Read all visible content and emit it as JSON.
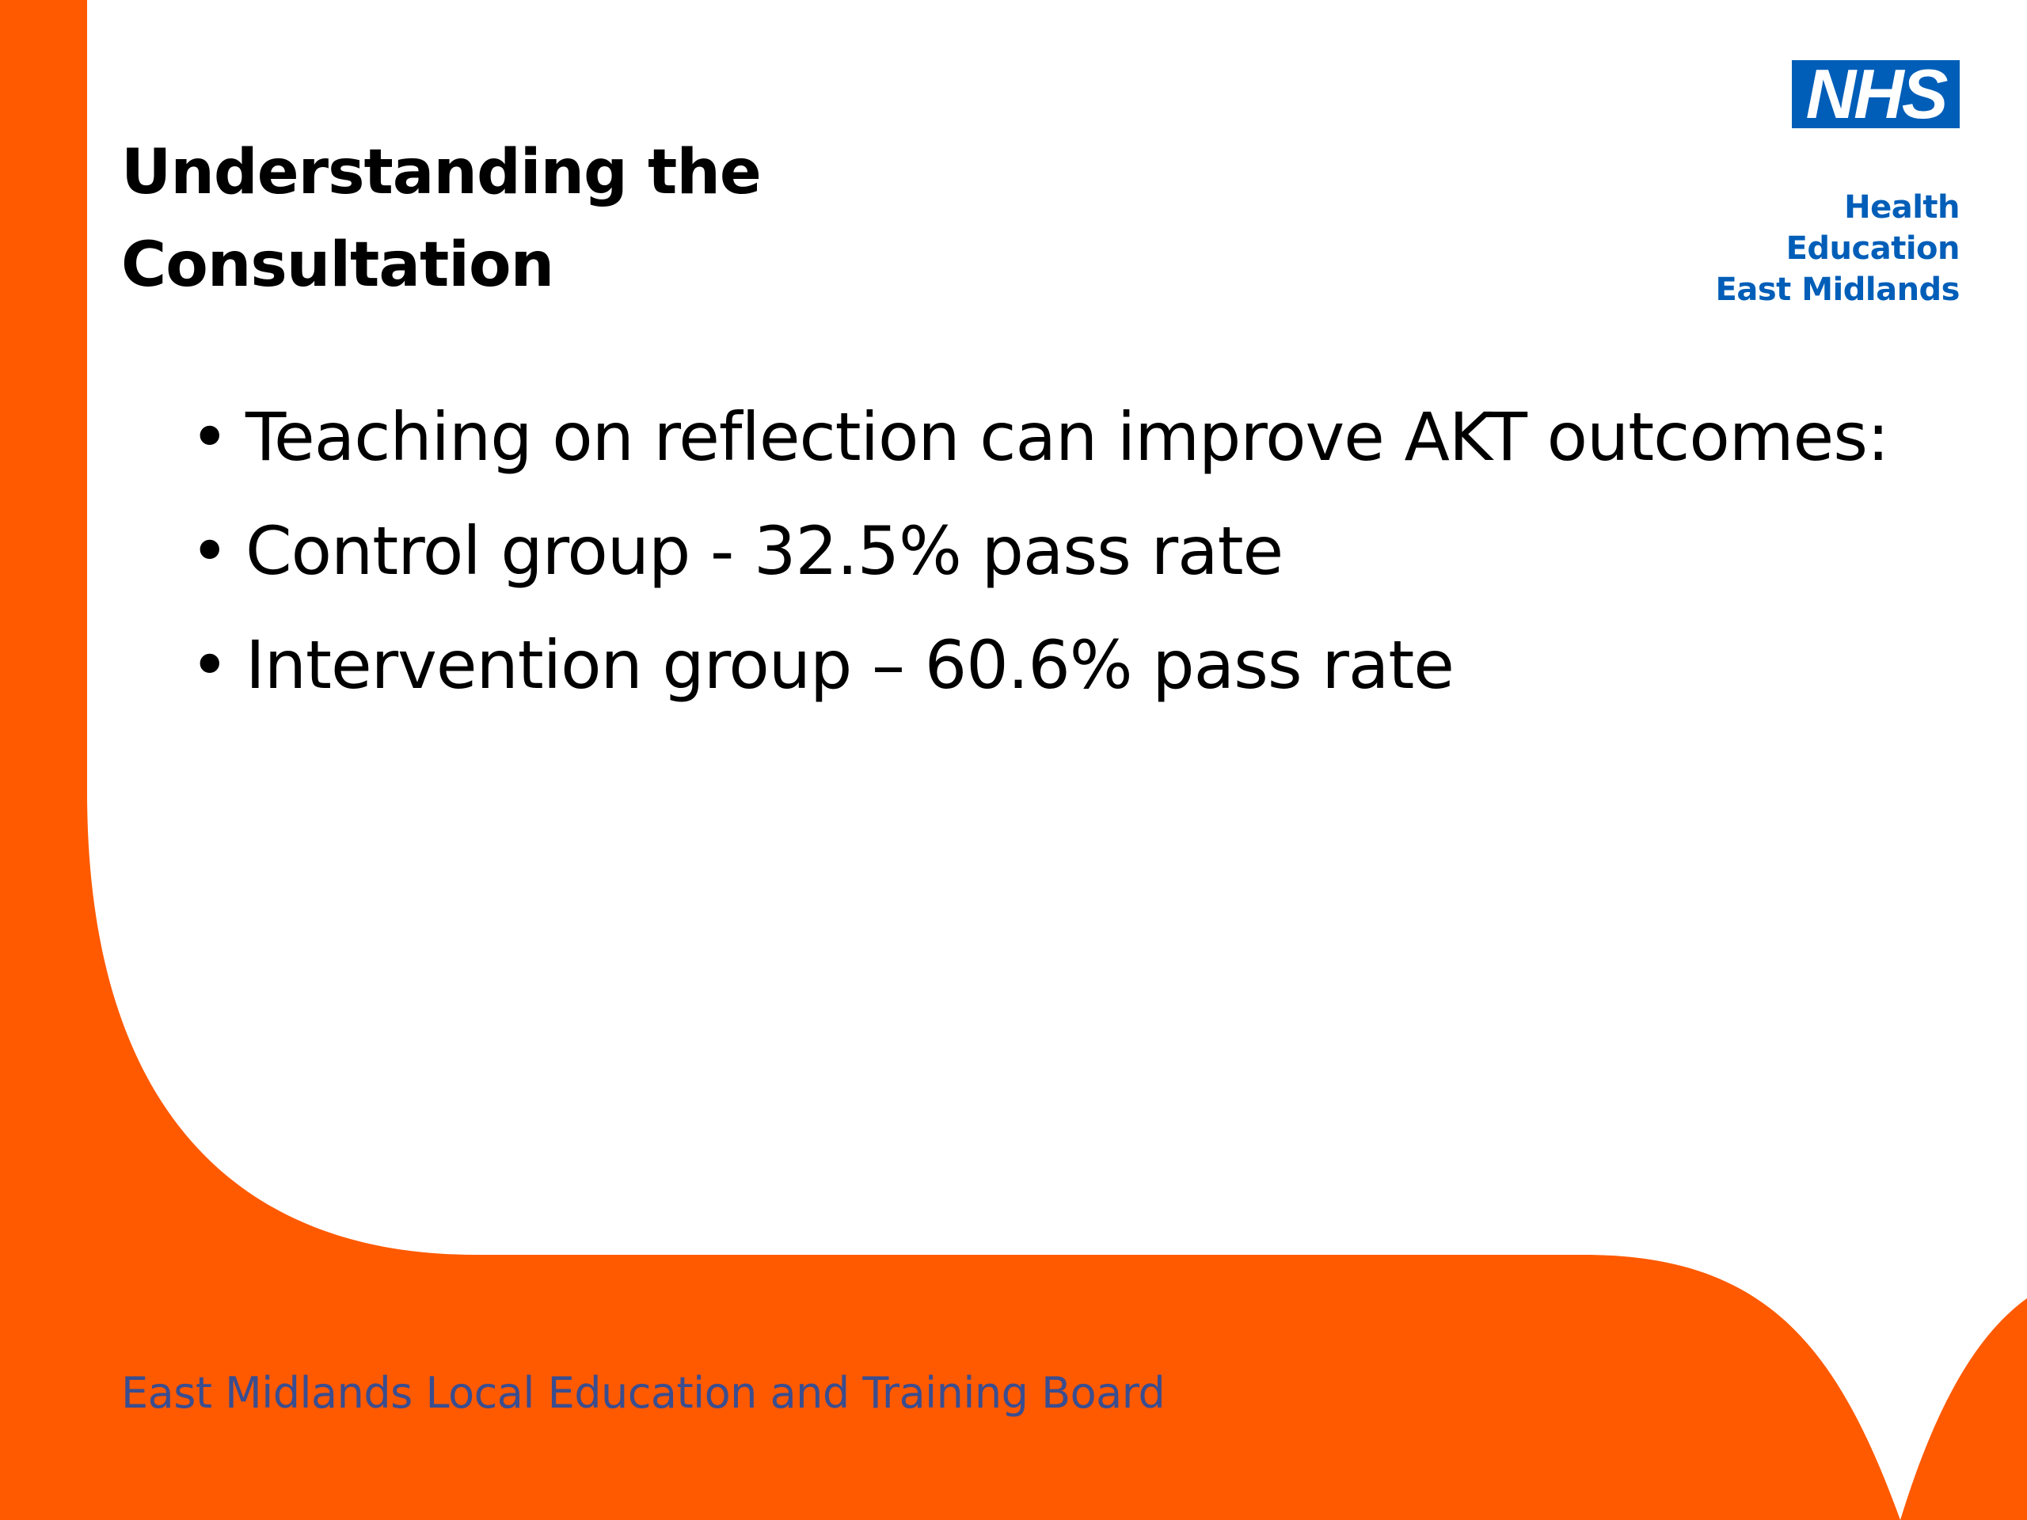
{
  "slide": {
    "title_lines": [
      "Understanding the",
      "Consultation"
    ],
    "logo": {
      "mark": "NHS",
      "org_lines": [
        "Health Education",
        "East Midlands"
      ]
    },
    "bullets": [
      "Teaching on reflection can improve AKT outcomes:",
      "Control group - 32.5% pass rate",
      "Intervention group – 60.6% pass rate"
    ],
    "bullet_glyph": "•",
    "footer": "East Midlands Local Education and Training Board"
  },
  "colors": {
    "accent_orange": "#ff5a00",
    "nhs_blue": "#005eb8",
    "footer_text": "#3a4d8f"
  }
}
